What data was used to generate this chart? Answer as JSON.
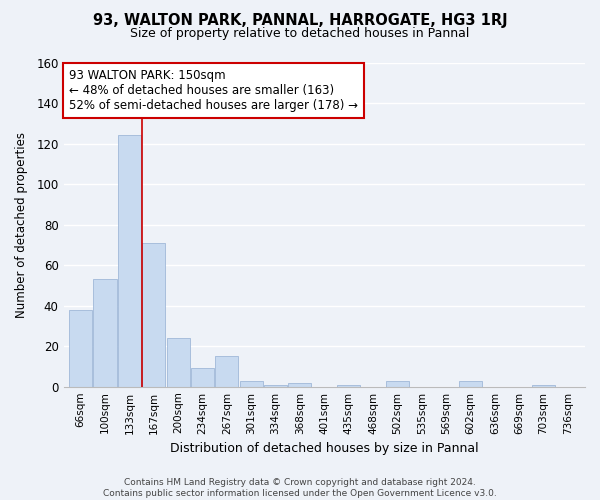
{
  "title": "93, WALTON PARK, PANNAL, HARROGATE, HG3 1RJ",
  "subtitle": "Size of property relative to detached houses in Pannal",
  "xlabel": "Distribution of detached houses by size in Pannal",
  "ylabel": "Number of detached properties",
  "bin_labels": [
    "66sqm",
    "100sqm",
    "133sqm",
    "167sqm",
    "200sqm",
    "234sqm",
    "267sqm",
    "301sqm",
    "334sqm",
    "368sqm",
    "401sqm",
    "435sqm",
    "468sqm",
    "502sqm",
    "535sqm",
    "569sqm",
    "602sqm",
    "636sqm",
    "669sqm",
    "703sqm",
    "736sqm"
  ],
  "bar_heights": [
    38,
    53,
    124,
    71,
    24,
    9,
    15,
    3,
    1,
    2,
    0,
    1,
    0,
    3,
    0,
    0,
    3,
    0,
    0,
    1,
    0
  ],
  "bar_color": "#c8daf0",
  "bar_edge_color": "#a0b8d8",
  "vline_x_idx": 3,
  "vline_color": "#cc0000",
  "annotation_line1": "93 WALTON PARK: 150sqm",
  "annotation_line2": "← 48% of detached houses are smaller (163)",
  "annotation_line3": "52% of semi-detached houses are larger (178) →",
  "annotation_box_color": "#ffffff",
  "annotation_box_edge": "#cc0000",
  "ylim": [
    0,
    160
  ],
  "yticks": [
    0,
    20,
    40,
    60,
    80,
    100,
    120,
    140,
    160
  ],
  "footer_line1": "Contains HM Land Registry data © Crown copyright and database right 2024.",
  "footer_line2": "Contains public sector information licensed under the Open Government Licence v3.0.",
  "bg_color": "#eef2f8"
}
